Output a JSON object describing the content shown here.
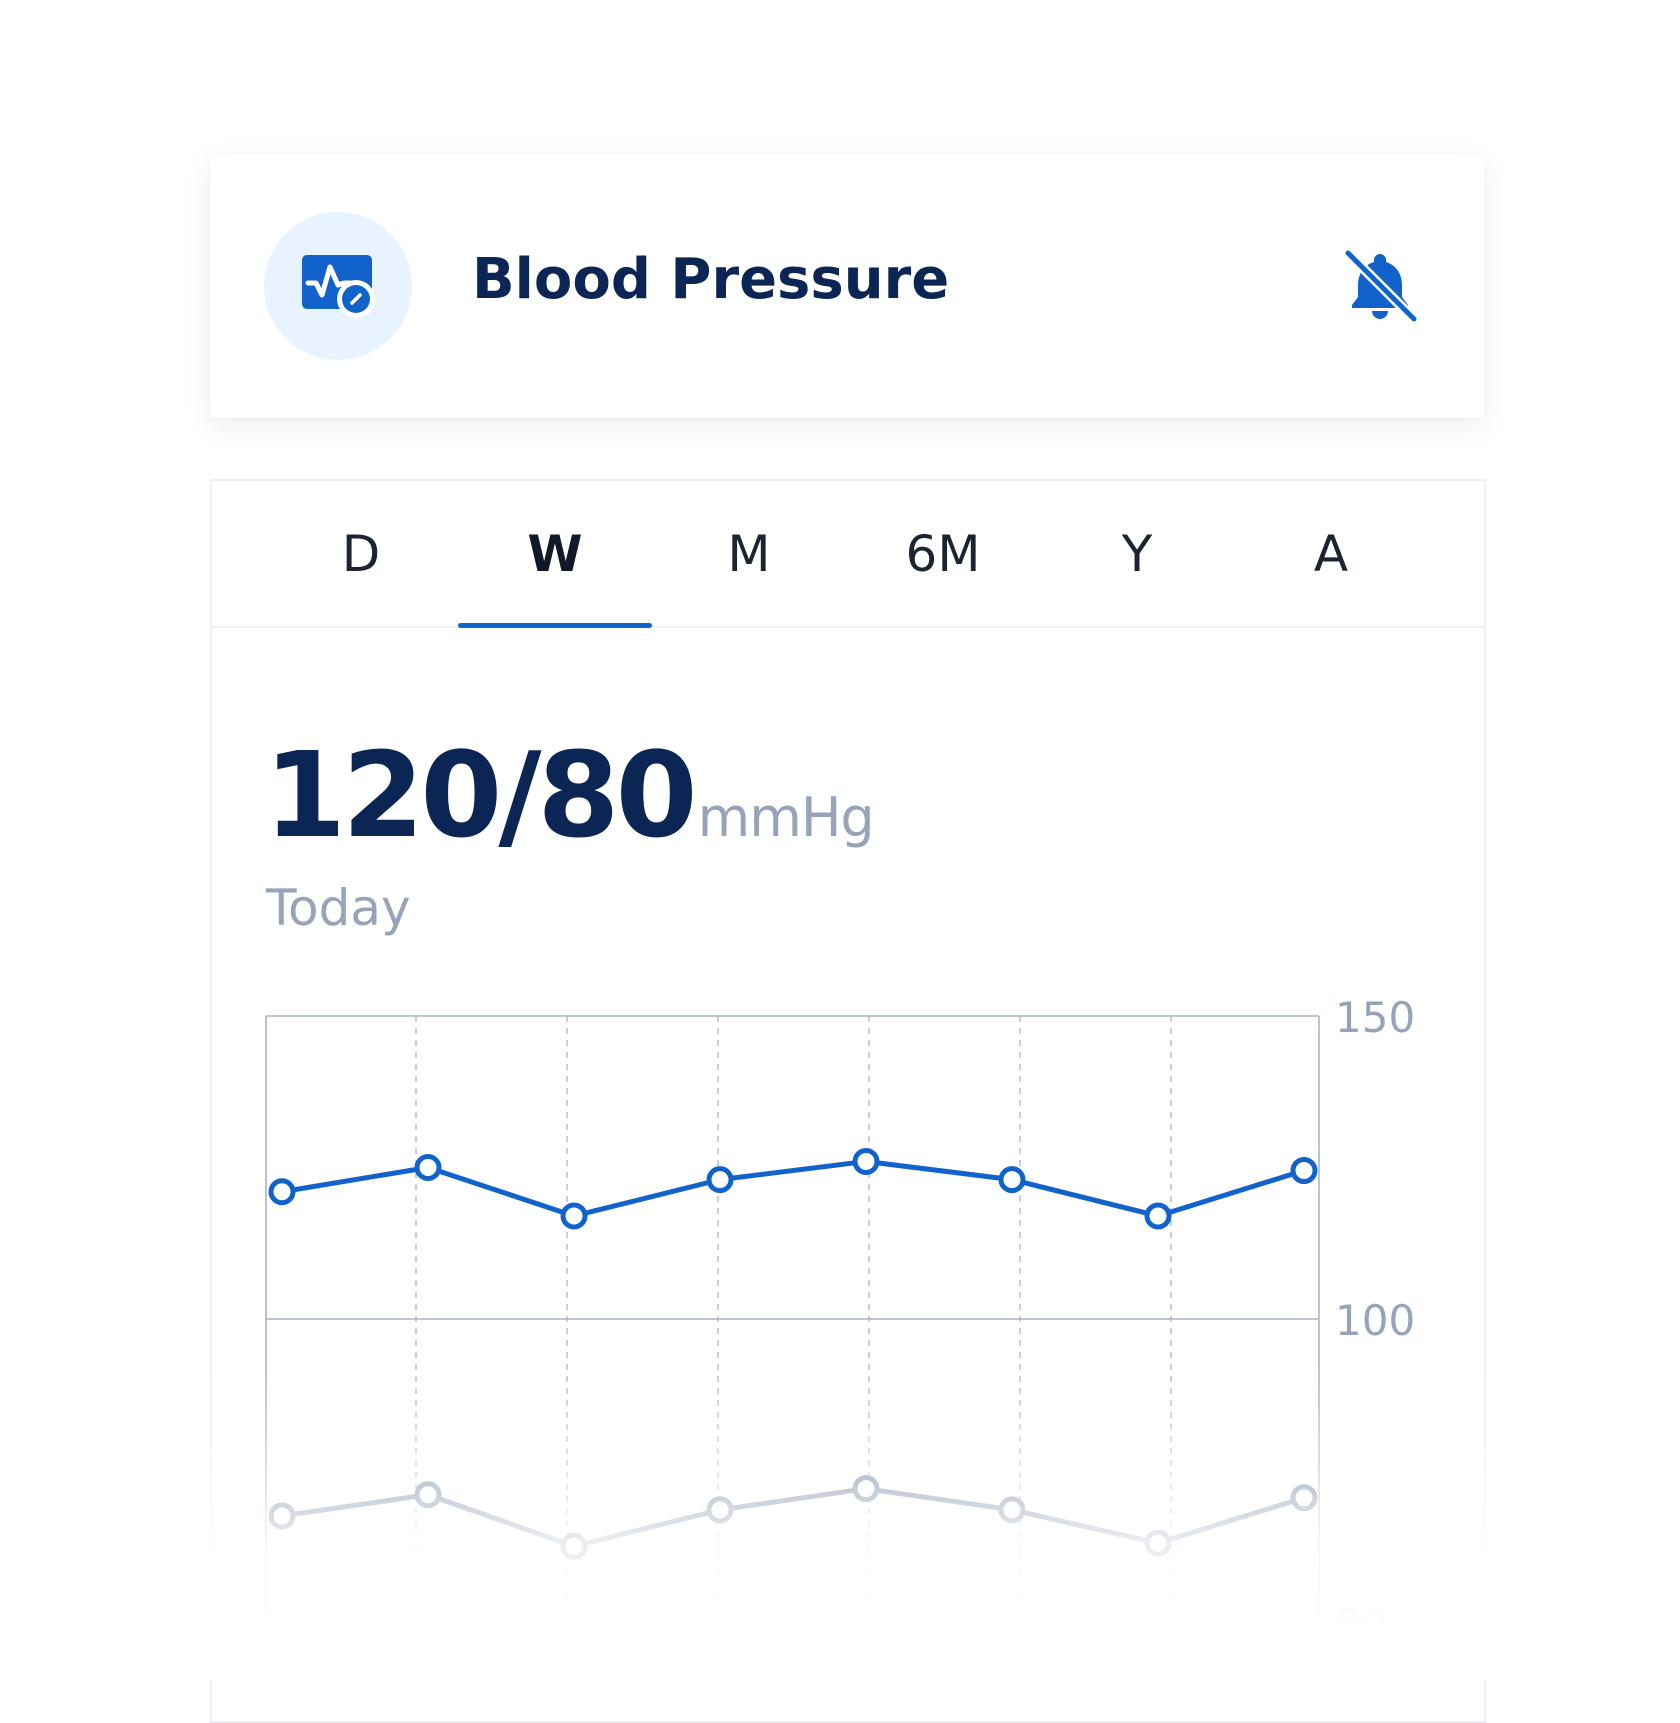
{
  "header": {
    "title": "Blood Pressure",
    "app_icon": "heart-monitor-gauge-icon",
    "alert_icon": "bell-off-icon"
  },
  "tabs": [
    {
      "label": "D",
      "active": false
    },
    {
      "label": "W",
      "active": true
    },
    {
      "label": "M",
      "active": false
    },
    {
      "label": "6M",
      "active": false
    },
    {
      "label": "Y",
      "active": false
    },
    {
      "label": "A",
      "active": false
    }
  ],
  "reading": {
    "value": "120/80",
    "unit": "mmHg",
    "period": "Today"
  },
  "colors": {
    "accent": "#1262cc",
    "systolic": "#1262cc",
    "diastolic": "#6f829e",
    "title": "#0b2554",
    "muted": "#97a3b8",
    "grid": "#a9b4c6"
  },
  "chart_data": {
    "type": "line",
    "x": [
      1,
      2,
      3,
      4,
      5,
      6,
      7,
      8
    ],
    "series": [
      {
        "values": [
          121,
          125,
          117,
          123,
          126,
          123,
          117,
          124.5
        ]
      },
      {
        "values": [
          67.5,
          71,
          62.5,
          68.5,
          72,
          68.5,
          63,
          70.5
        ]
      }
    ],
    "y_ticks": [
      "150",
      "100",
      "50"
    ],
    "ylim": [
      50,
      150
    ],
    "grid": true,
    "y_axis_position": "right"
  }
}
